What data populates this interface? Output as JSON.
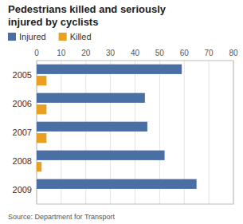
{
  "chart_data": {
    "type": "bar",
    "orientation": "horizontal",
    "title": "Pedestrians killed and seriously\ninjured by cyclists",
    "categories": [
      "2005",
      "2006",
      "2007",
      "2008",
      "2009"
    ],
    "series": [
      {
        "name": "Injured",
        "color": "#4a6fa5",
        "values": [
          59,
          44,
          45,
          52,
          65
        ]
      },
      {
        "name": "Killed",
        "color": "#e8a020",
        "values": [
          4,
          4,
          4,
          2,
          0
        ]
      }
    ],
    "xlim": [
      0,
      80
    ],
    "xticks": [
      0,
      10,
      20,
      30,
      40,
      50,
      60,
      70,
      80
    ],
    "grid": true,
    "legend": "top",
    "annotations": [
      "Source: Department for Transport"
    ]
  }
}
